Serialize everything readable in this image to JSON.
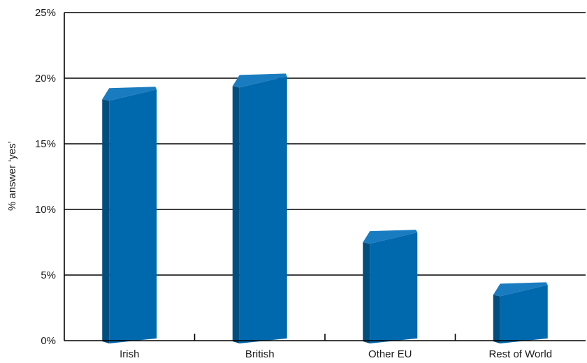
{
  "chart_data": {
    "type": "bar",
    "categories": [
      "Irish",
      "British",
      "Other EU",
      "Rest of World"
    ],
    "values": [
      18.5,
      19.5,
      7.6,
      3.6
    ],
    "ylabel": "% answer ‘yes’",
    "ylim": [
      0,
      25
    ],
    "yticks": [
      "0%",
      "5%",
      "10%",
      "15%",
      "20%",
      "25%"
    ],
    "grid": true,
    "colors": {
      "bar_front": "#0068ac",
      "bar_side": "#004d80",
      "bar_top": "#1a7cc0",
      "grid": "#000000"
    }
  }
}
